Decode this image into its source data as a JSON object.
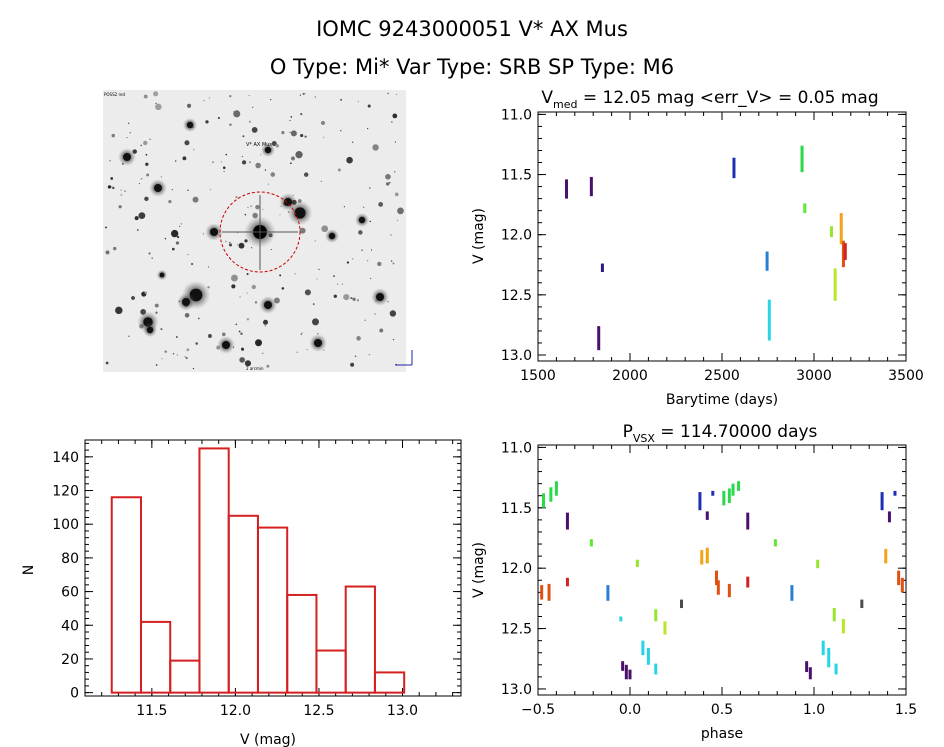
{
  "header": {
    "title_line1": "IOMC 9243000051   V* AX Mus",
    "title_line2": "O Type: Mi*  Var Type: SRB  SP Type: M6"
  },
  "finder": {
    "target_label": "V* AX Mus",
    "corner_label_tl": "POSS2 red",
    "corner_label_bl": "2 arcmin",
    "marker_color": "#cc0000"
  },
  "chart_data": [
    {
      "id": "lightcurve",
      "type": "scatter",
      "title_main": "V",
      "title_sub": "med",
      "title_rest": " = 12.05 mag <err_V> = 0.05 mag",
      "xlabel": "Barytime (days)",
      "ylabel": "V (mag)",
      "xlim": [
        1500,
        3500
      ],
      "ylim": [
        13.05,
        10.98
      ],
      "xticks": [
        1500,
        2000,
        2500,
        3000,
        3500
      ],
      "xtick_labels": [
        "1500",
        "2000",
        "2500",
        "3000",
        "3500"
      ],
      "yticks": [
        11.0,
        11.5,
        12.0,
        12.5,
        13.0
      ],
      "ytick_labels": [
        "11.0",
        "11.5",
        "12.0",
        "12.5",
        "13.0"
      ],
      "segments": [
        {
          "x": 1655,
          "y1": 11.54,
          "y2": 11.7,
          "color": "#4b0f6e"
        },
        {
          "x": 1790,
          "y1": 11.52,
          "y2": 11.68,
          "color": "#4b0f6e"
        },
        {
          "x": 1830,
          "y1": 12.76,
          "y2": 12.96,
          "color": "#4b0f6e"
        },
        {
          "x": 1850,
          "y1": 12.24,
          "y2": 12.31,
          "color": "#2b1a8a"
        },
        {
          "x": 2565,
          "y1": 11.36,
          "y2": 11.53,
          "color": "#1d2fb3"
        },
        {
          "x": 2745,
          "y1": 12.14,
          "y2": 12.3,
          "color": "#2a7fd4"
        },
        {
          "x": 2757,
          "y1": 12.54,
          "y2": 12.88,
          "color": "#26d4e8"
        },
        {
          "x": 2935,
          "y1": 11.26,
          "y2": 11.48,
          "color": "#29d94a"
        },
        {
          "x": 2950,
          "y1": 11.74,
          "y2": 11.82,
          "color": "#5ee832"
        },
        {
          "x": 3095,
          "y1": 11.93,
          "y2": 12.02,
          "color": "#96e62b"
        },
        {
          "x": 3115,
          "y1": 12.28,
          "y2": 12.55,
          "color": "#b7e827"
        },
        {
          "x": 3148,
          "y1": 11.82,
          "y2": 12.08,
          "color": "#f0a416"
        },
        {
          "x": 3160,
          "y1": 12.05,
          "y2": 12.27,
          "color": "#e05012"
        },
        {
          "x": 3170,
          "y1": 12.07,
          "y2": 12.21,
          "color": "#d42020"
        }
      ]
    },
    {
      "id": "histogram",
      "type": "bar",
      "xlabel": "V (mag)",
      "ylabel": "N",
      "xlim": [
        11.1,
        13.35
      ],
      "ylim": [
        -2,
        150
      ],
      "xticks": [
        11.5,
        12.0,
        12.5,
        13.0
      ],
      "xtick_labels": [
        "11.5",
        "12.0",
        "12.5",
        "13.0"
      ],
      "yticks": [
        0,
        20,
        40,
        60,
        80,
        100,
        120,
        140
      ],
      "ytick_labels": [
        "0",
        "20",
        "40",
        "60",
        "80",
        "100",
        "120",
        "140"
      ],
      "bin_edges": [
        11.26,
        11.435,
        11.61,
        11.785,
        11.96,
        12.135,
        12.31,
        12.485,
        12.66,
        12.835,
        13.01
      ],
      "values": [
        116,
        42,
        19,
        145,
        105,
        98,
        58,
        25,
        63,
        12
      ],
      "bar_color": "#d42020"
    },
    {
      "id": "phased",
      "type": "scatter",
      "title_main": "P",
      "title_sub": "VSX",
      "title_rest": " = 114.70000 days",
      "xlabel": "phase",
      "ylabel": "V (mag)",
      "xlim": [
        -0.5,
        1.5
      ],
      "ylim": [
        13.05,
        10.98
      ],
      "xticks": [
        -0.5,
        0.0,
        0.5,
        1.0,
        1.5
      ],
      "xtick_labels": [
        "−0.5",
        "0.0",
        "0.5",
        "1.0",
        "1.5"
      ],
      "yticks": [
        11.0,
        11.5,
        12.0,
        12.5,
        13.0
      ],
      "ytick_labels": [
        "11.0",
        "11.5",
        "12.0",
        "12.5",
        "13.0"
      ],
      "segments": [
        {
          "x": -0.48,
          "y1": 12.14,
          "y2": 12.26,
          "color": "#e05012"
        },
        {
          "x": -0.44,
          "y1": 12.13,
          "y2": 12.27,
          "color": "#e05012"
        },
        {
          "x": -0.47,
          "y1": 11.38,
          "y2": 11.5,
          "color": "#29d94a"
        },
        {
          "x": -0.43,
          "y1": 11.33,
          "y2": 11.45,
          "color": "#29d94a"
        },
        {
          "x": -0.4,
          "y1": 11.28,
          "y2": 11.4,
          "color": "#29d94a"
        },
        {
          "x": -0.34,
          "y1": 11.54,
          "y2": 11.68,
          "color": "#4b0f6e"
        },
        {
          "x": -0.34,
          "y1": 12.08,
          "y2": 12.15,
          "color": "#d42020"
        },
        {
          "x": -0.21,
          "y1": 11.76,
          "y2": 11.82,
          "color": "#5ee832"
        },
        {
          "x": -0.12,
          "y1": 12.14,
          "y2": 12.27,
          "color": "#2a7fd4"
        },
        {
          "x": -0.05,
          "y1": 12.4,
          "y2": 12.44,
          "color": "#26d4e8"
        },
        {
          "x": -0.04,
          "y1": 12.77,
          "y2": 12.85,
          "color": "#4b0f6e"
        },
        {
          "x": -0.02,
          "y1": 12.8,
          "y2": 12.92,
          "color": "#4b0f6e"
        },
        {
          "x": 0.0,
          "y1": 12.84,
          "y2": 12.92,
          "color": "#4b0f6e"
        },
        {
          "x": 0.04,
          "y1": 11.93,
          "y2": 11.99,
          "color": "#96e62b"
        },
        {
          "x": 0.07,
          "y1": 12.6,
          "y2": 12.72,
          "color": "#26d4e8"
        },
        {
          "x": 0.1,
          "y1": 12.66,
          "y2": 12.8,
          "color": "#26d4e8"
        },
        {
          "x": 0.14,
          "y1": 12.79,
          "y2": 12.88,
          "color": "#26d4e8"
        },
        {
          "x": 0.14,
          "y1": 12.34,
          "y2": 12.44,
          "color": "#96e62b"
        },
        {
          "x": 0.19,
          "y1": 12.44,
          "y2": 12.55,
          "color": "#b7e827"
        },
        {
          "x": 0.28,
          "y1": 12.26,
          "y2": 12.33,
          "color": "#4b4b4b"
        },
        {
          "x": 0.38,
          "y1": 11.37,
          "y2": 11.52,
          "color": "#1d2fb3"
        },
        {
          "x": 0.39,
          "y1": 11.85,
          "y2": 11.97,
          "color": "#f0a416"
        },
        {
          "x": 0.42,
          "y1": 11.53,
          "y2": 11.6,
          "color": "#4b0f6e"
        },
        {
          "x": 0.42,
          "y1": 11.83,
          "y2": 11.96,
          "color": "#f0a416"
        },
        {
          "x": 0.45,
          "y1": 11.36,
          "y2": 11.4,
          "color": "#1d2fb3"
        },
        {
          "x": 0.47,
          "y1": 12.02,
          "y2": 12.14,
          "color": "#e05012"
        },
        {
          "x": 0.48,
          "y1": 12.1,
          "y2": 12.22,
          "color": "#e05012"
        },
        {
          "x": 0.51,
          "y1": 11.36,
          "y2": 11.48,
          "color": "#29d94a"
        },
        {
          "x": 0.54,
          "y1": 11.34,
          "y2": 11.46,
          "color": "#29d94a"
        },
        {
          "x": 0.56,
          "y1": 11.3,
          "y2": 11.4,
          "color": "#29d94a"
        },
        {
          "x": 0.59,
          "y1": 11.28,
          "y2": 11.36,
          "color": "#29d94a"
        },
        {
          "x": 0.54,
          "y1": 12.13,
          "y2": 12.24,
          "color": "#e05012"
        },
        {
          "x": 0.64,
          "y1": 11.54,
          "y2": 11.68,
          "color": "#4b0f6e"
        },
        {
          "x": 0.64,
          "y1": 12.07,
          "y2": 12.16,
          "color": "#d42020"
        },
        {
          "x": 0.79,
          "y1": 11.76,
          "y2": 11.82,
          "color": "#5ee832"
        },
        {
          "x": 0.88,
          "y1": 12.14,
          "y2": 12.27,
          "color": "#2a7fd4"
        },
        {
          "x": 0.96,
          "y1": 12.77,
          "y2": 12.86,
          "color": "#4b0f6e"
        },
        {
          "x": 0.98,
          "y1": 12.82,
          "y2": 12.92,
          "color": "#4b0f6e"
        },
        {
          "x": 1.02,
          "y1": 11.93,
          "y2": 12.0,
          "color": "#96e62b"
        },
        {
          "x": 1.05,
          "y1": 12.6,
          "y2": 12.72,
          "color": "#26d4e8"
        },
        {
          "x": 1.08,
          "y1": 12.66,
          "y2": 12.82,
          "color": "#26d4e8"
        },
        {
          "x": 1.11,
          "y1": 12.33,
          "y2": 12.44,
          "color": "#96e62b"
        },
        {
          "x": 1.12,
          "y1": 12.79,
          "y2": 12.88,
          "color": "#26d4e8"
        },
        {
          "x": 1.16,
          "y1": 12.42,
          "y2": 12.54,
          "color": "#b7e827"
        },
        {
          "x": 1.26,
          "y1": 12.26,
          "y2": 12.33,
          "color": "#4b4b4b"
        },
        {
          "x": 1.37,
          "y1": 11.37,
          "y2": 11.52,
          "color": "#1d2fb3"
        },
        {
          "x": 1.39,
          "y1": 11.84,
          "y2": 11.96,
          "color": "#f0a416"
        },
        {
          "x": 1.41,
          "y1": 11.53,
          "y2": 11.62,
          "color": "#4b0f6e"
        },
        {
          "x": 1.44,
          "y1": 11.36,
          "y2": 11.4,
          "color": "#1d2fb3"
        },
        {
          "x": 1.46,
          "y1": 12.02,
          "y2": 12.14,
          "color": "#e05012"
        },
        {
          "x": 1.48,
          "y1": 12.08,
          "y2": 12.2,
          "color": "#e05012"
        }
      ]
    }
  ]
}
